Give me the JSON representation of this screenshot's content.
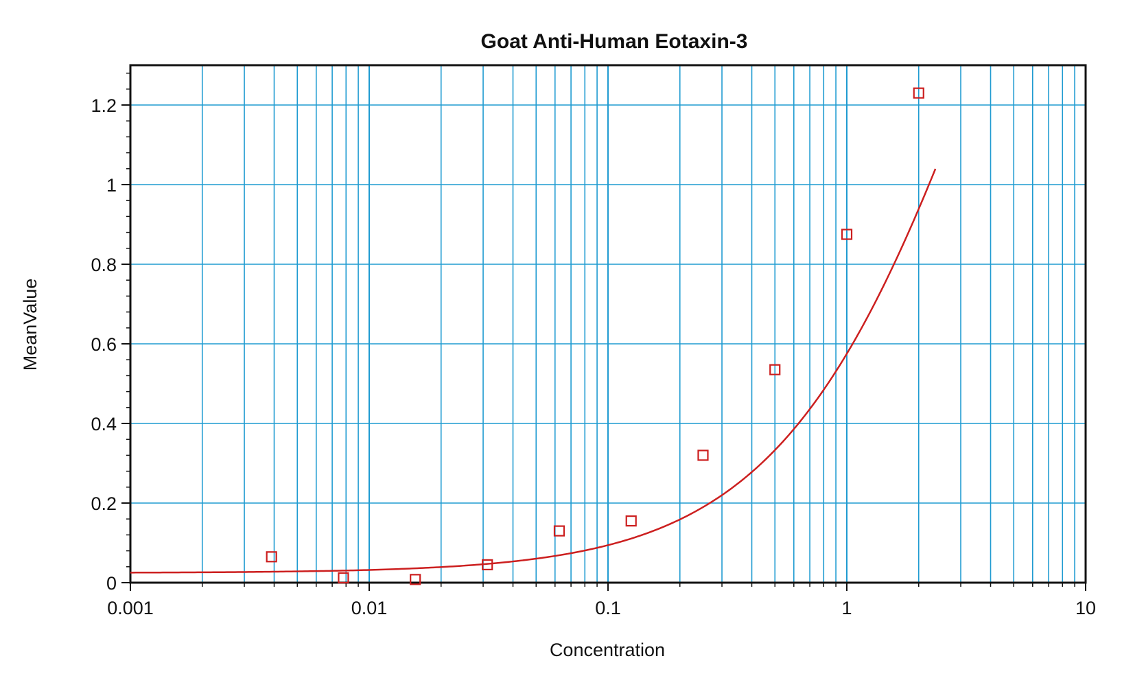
{
  "chart_data": {
    "type": "scatter",
    "title": "Goat Anti-Human Eotaxin-3",
    "xlabel": "Concentration",
    "ylabel": "MeanValue",
    "x_scale": "log",
    "xlim": [
      0.001,
      10
    ],
    "ylim": [
      0,
      1.3
    ],
    "grid": true,
    "x_ticks": [
      {
        "value": 0.001,
        "label": "0.001"
      },
      {
        "value": 0.01,
        "label": "0.01"
      },
      {
        "value": 0.1,
        "label": "0.1"
      },
      {
        "value": 1,
        "label": "1"
      },
      {
        "value": 10,
        "label": "10"
      }
    ],
    "y_ticks": [
      {
        "value": 0,
        "label": "0"
      },
      {
        "value": 0.2,
        "label": "0.2"
      },
      {
        "value": 0.4,
        "label": "0.4"
      },
      {
        "value": 0.6,
        "label": "0.6"
      },
      {
        "value": 0.8,
        "label": "0.8"
      },
      {
        "value": 1,
        "label": "1"
      },
      {
        "value": 1.2,
        "label": "1.2"
      }
    ],
    "series": [
      {
        "marker": "open-square",
        "color": "#cc1f1f",
        "points": [
          {
            "x": 0.0039,
            "y": 0.065
          },
          {
            "x": 0.0078,
            "y": 0.012
          },
          {
            "x": 0.0156,
            "y": 0.008
          },
          {
            "x": 0.03125,
            "y": 0.045
          },
          {
            "x": 0.0625,
            "y": 0.13
          },
          {
            "x": 0.125,
            "y": 0.155
          },
          {
            "x": 0.25,
            "y": 0.32
          },
          {
            "x": 0.5,
            "y": 0.535
          },
          {
            "x": 1.0,
            "y": 0.875
          },
          {
            "x": 2.0,
            "y": 1.23
          }
        ]
      },
      {
        "type": "line",
        "color": "#cc1f1f",
        "fit": "4PL",
        "params": {
          "a": 0.0245,
          "b": 0.98,
          "c": 4.3,
          "d": 2.875
        },
        "x_range": [
          0.001,
          2.35
        ]
      }
    ],
    "grid_color": "#1f9bd1"
  }
}
